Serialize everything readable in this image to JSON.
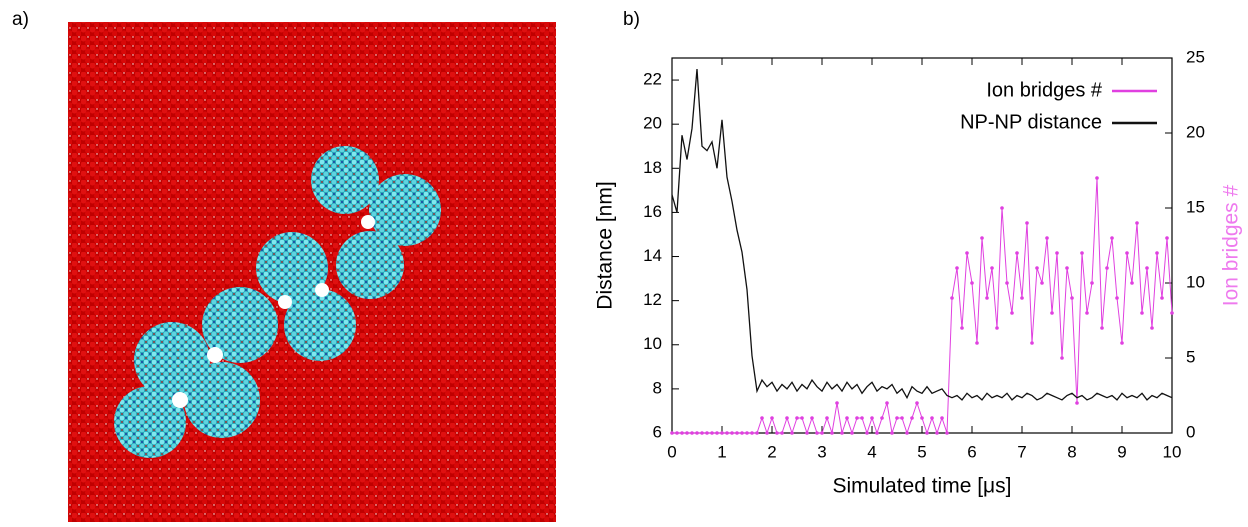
{
  "panel_labels": [
    "a)",
    "b)"
  ],
  "chart_data": {
    "type": "line",
    "xlabel": "Simulated time [μs]",
    "ylabel": "Distance [nm]",
    "y2label": "Ion bridges #",
    "y2label_color": "#ee7aee",
    "legend": "top-right",
    "grid": false,
    "xlim": [
      0,
      10
    ],
    "xticks": [
      0,
      1,
      2,
      3,
      4,
      5,
      6,
      7,
      8,
      9,
      10
    ],
    "ylim": [
      6,
      23
    ],
    "yticks": [
      6,
      8,
      10,
      12,
      14,
      16,
      18,
      20,
      22
    ],
    "y2lim": [
      0,
      25
    ],
    "y2ticks": [
      0,
      5,
      10,
      15,
      20,
      25
    ],
    "x": [
      0,
      0.1,
      0.2,
      0.3,
      0.4,
      0.5,
      0.6,
      0.7,
      0.8,
      0.9,
      1,
      1.1,
      1.2,
      1.3,
      1.4,
      1.5,
      1.6,
      1.7,
      1.8,
      1.9,
      2,
      2.1,
      2.2,
      2.3,
      2.4,
      2.5,
      2.6,
      2.7,
      2.8,
      2.9,
      3,
      3.1,
      3.2,
      3.3,
      3.4,
      3.5,
      3.6,
      3.7,
      3.8,
      3.9,
      4,
      4.1,
      4.2,
      4.3,
      4.4,
      4.5,
      4.6,
      4.7,
      4.8,
      4.9,
      5,
      5.1,
      5.2,
      5.3,
      5.4,
      5.5,
      5.6,
      5.7,
      5.8,
      5.9,
      6,
      6.1,
      6.2,
      6.3,
      6.4,
      6.5,
      6.6,
      6.7,
      6.8,
      6.9,
      7,
      7.1,
      7.2,
      7.3,
      7.4,
      7.5,
      7.6,
      7.7,
      7.8,
      7.9,
      8,
      8.1,
      8.2,
      8.3,
      8.4,
      8.5,
      8.6,
      8.7,
      8.8,
      8.9,
      9,
      9.1,
      9.2,
      9.3,
      9.4,
      9.5,
      9.6,
      9.7,
      9.8,
      9.9,
      10
    ],
    "series": [
      {
        "name": "Ion bridges #",
        "color": "#e040e0",
        "axis": "y2",
        "markers": true,
        "values": [
          0,
          0,
          0,
          0,
          0,
          0,
          0,
          0,
          0,
          0,
          0,
          0,
          0,
          0,
          0,
          0,
          0,
          0,
          1,
          0,
          1,
          0,
          0,
          1,
          0,
          1,
          1,
          0,
          1,
          0,
          0,
          1,
          0,
          2,
          0,
          1,
          0,
          1,
          1,
          0,
          1,
          0,
          1,
          2,
          0,
          1,
          1,
          0,
          1,
          2,
          1,
          0,
          1,
          0,
          1,
          0,
          9,
          11,
          7,
          12,
          10,
          6,
          13,
          9,
          11,
          7,
          15,
          10,
          8,
          12,
          9,
          14,
          6,
          11,
          10,
          13,
          8,
          12,
          5,
          11,
          9,
          2,
          12,
          8,
          10,
          17,
          7,
          11,
          13,
          9,
          6,
          12,
          10,
          14,
          8,
          11,
          7,
          12,
          9,
          13,
          8
        ]
      },
      {
        "name": "NP-NP distance",
        "color": "#111111",
        "axis": "y",
        "markers": false,
        "values": [
          16.8,
          16.0,
          19.5,
          18.4,
          19.8,
          22.5,
          19.0,
          18.8,
          19.2,
          18.0,
          20.2,
          17.6,
          16.5,
          15.2,
          14.2,
          12.5,
          9.5,
          7.9,
          8.4,
          8.1,
          8.3,
          7.9,
          8.2,
          8.0,
          8.3,
          7.9,
          8.2,
          8.0,
          8.4,
          8.1,
          7.9,
          8.3,
          8.0,
          8.2,
          7.9,
          8.3,
          8.0,
          8.2,
          7.8,
          8.1,
          8.3,
          7.9,
          8.1,
          8.0,
          8.2,
          7.8,
          8.0,
          7.6,
          8.1,
          7.9,
          7.8,
          8.1,
          7.8,
          7.9,
          8.0,
          7.7,
          7.6,
          7.7,
          7.5,
          7.8,
          7.6,
          7.7,
          7.5,
          7.8,
          7.6,
          7.7,
          7.6,
          7.8,
          7.5,
          7.7,
          7.6,
          7.8,
          7.7,
          7.5,
          7.6,
          7.8,
          7.7,
          7.6,
          7.5,
          7.7,
          7.8,
          7.6,
          7.7,
          7.5,
          7.6,
          7.8,
          7.7,
          7.6,
          7.7,
          7.5,
          7.8,
          7.6,
          7.7,
          7.6,
          7.8,
          7.5,
          7.7,
          7.6,
          7.8,
          7.7,
          7.6
        ]
      }
    ]
  }
}
